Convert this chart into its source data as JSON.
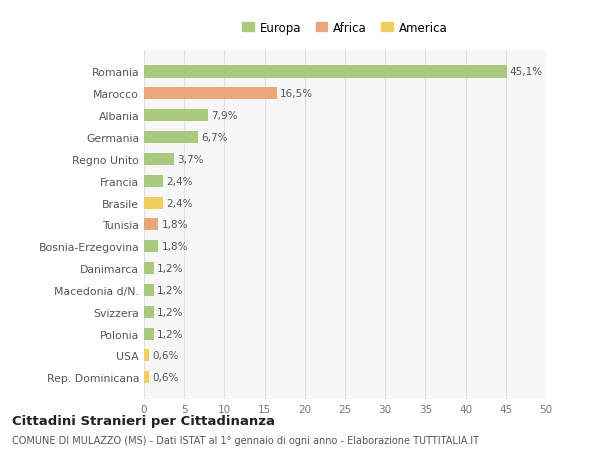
{
  "countries": [
    "Romania",
    "Marocco",
    "Albania",
    "Germania",
    "Regno Unito",
    "Francia",
    "Brasile",
    "Tunisia",
    "Bosnia-Erzegovina",
    "Danimarca",
    "Macedonia d/N.",
    "Svizzera",
    "Polonia",
    "USA",
    "Rep. Dominicana"
  ],
  "values": [
    45.1,
    16.5,
    7.9,
    6.7,
    3.7,
    2.4,
    2.4,
    1.8,
    1.8,
    1.2,
    1.2,
    1.2,
    1.2,
    0.6,
    0.6
  ],
  "labels": [
    "45,1%",
    "16,5%",
    "7,9%",
    "6,7%",
    "3,7%",
    "2,4%",
    "2,4%",
    "1,8%",
    "1,8%",
    "1,2%",
    "1,2%",
    "1,2%",
    "1,2%",
    "0,6%",
    "0,6%"
  ],
  "continent": [
    "Europa",
    "Africa",
    "Europa",
    "Europa",
    "Europa",
    "Europa",
    "America",
    "Africa",
    "Europa",
    "Europa",
    "Europa",
    "Europa",
    "Europa",
    "America",
    "America"
  ],
  "colors": {
    "Europa": "#a8c97e",
    "Africa": "#e8a87c",
    "America": "#f0cf60"
  },
  "background_color": "#ffffff",
  "plot_bg_color": "#f7f7f7",
  "grid_color": "#e0e0e0",
  "xlim": [
    0,
    50
  ],
  "xticks": [
    0,
    5,
    10,
    15,
    20,
    25,
    30,
    35,
    40,
    45,
    50
  ],
  "title": "Cittadini Stranieri per Cittadinanza",
  "subtitle": "COMUNE DI MULAZZO (MS) - Dati ISTAT al 1° gennaio di ogni anno - Elaborazione TUTTITALIA.IT"
}
